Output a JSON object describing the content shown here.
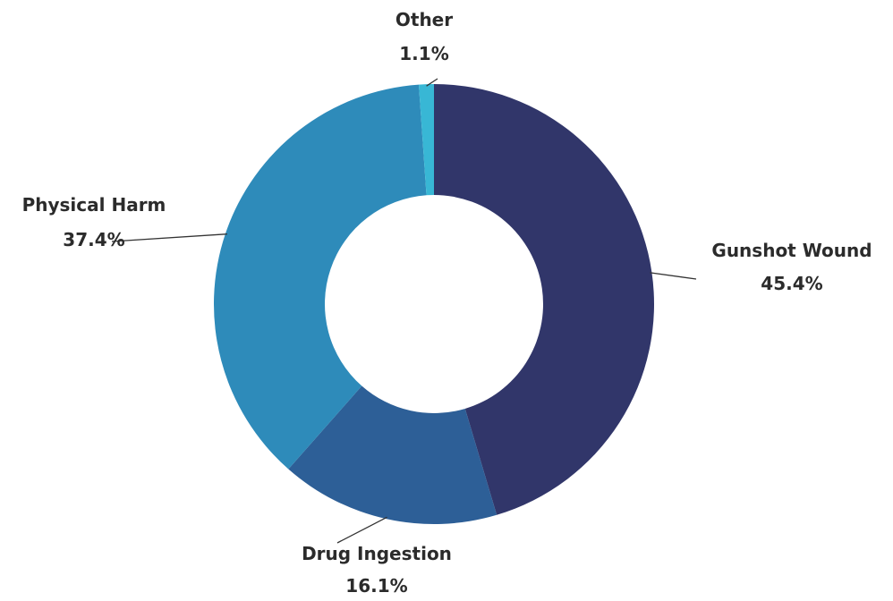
{
  "chart_data": {
    "type": "pie",
    "variant": "donut",
    "title": "",
    "categories": [
      "Gunshot Wound",
      "Drug Ingestion",
      "Physical Harm",
      "Other"
    ],
    "values": [
      45.4,
      16.1,
      37.4,
      1.1
    ],
    "value_labels": [
      "45.4%",
      "16.1%",
      "37.4%",
      "1.1%"
    ],
    "unit": "%",
    "start_angle_deg": 0,
    "direction": "clockwise",
    "legend": "none",
    "colors": [
      "#31366a",
      "#2d5f97",
      "#2e8bba",
      "#38b7d5"
    ]
  }
}
